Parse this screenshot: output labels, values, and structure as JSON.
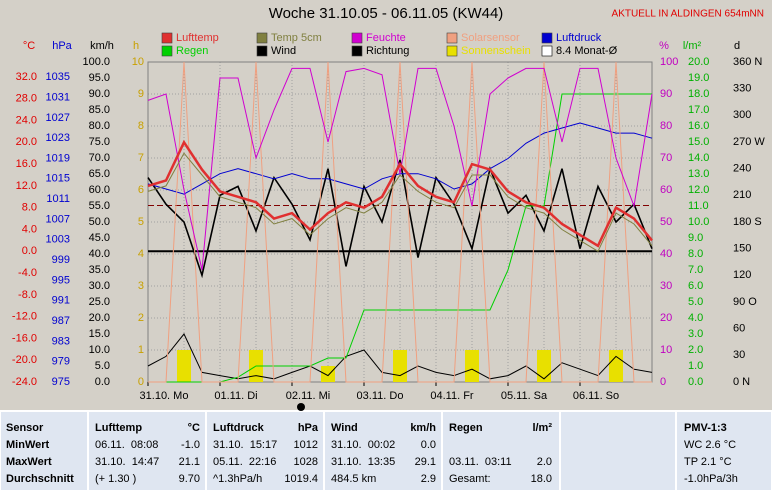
{
  "chart_data": {
    "type": "line",
    "title": "Woche 31.10.05 - 06.11.05 (KW44)",
    "subtitle": "AKTUELL IN ALDINGEN 654mNN",
    "categories": [
      "31.10. Mo",
      null,
      null,
      null,
      "01.11. Di",
      null,
      null,
      null,
      "02.11. Mi",
      null,
      null,
      null,
      "03.11. Do",
      null,
      null,
      null,
      "04.11. Fr",
      null,
      null,
      null,
      "05.11. Sa",
      null,
      null,
      null,
      "06.11. So",
      null,
      null,
      null,
      null
    ],
    "grid": true,
    "axes": [
      {
        "label": "°C",
        "color": "#e00000",
        "side": "left",
        "lim": [
          -24,
          34.75
        ],
        "ticks": [
          {
            "value": 32,
            "label": "32.0"
          },
          {
            "value": 28,
            "label": "28.0"
          },
          {
            "value": 24,
            "label": "24.0"
          },
          {
            "value": 20,
            "label": "20.0"
          },
          {
            "value": 16,
            "label": "16.0"
          },
          {
            "value": 12,
            "label": "12.0"
          },
          {
            "value": 8,
            "label": "8.0"
          },
          {
            "value": 4,
            "label": "4.0"
          },
          {
            "value": 0,
            "label": "0.0"
          },
          {
            "value": -4,
            "label": "-4.0"
          },
          {
            "value": -8,
            "label": "-8.0"
          },
          {
            "value": -12,
            "label": "-12.0"
          },
          {
            "value": -16,
            "label": "-16.0"
          },
          {
            "value": -20,
            "label": "-20.0"
          },
          {
            "value": -24,
            "label": "-24.0"
          }
        ]
      },
      {
        "label": "hPa",
        "color": "#0000d0",
        "side": "left",
        "lim": [
          975,
          1038
        ],
        "ticks": [
          1035,
          1031,
          1027,
          1023,
          1019,
          1015,
          1011,
          1007,
          1003,
          999,
          995,
          991,
          987,
          983,
          979,
          975
        ]
      },
      {
        "label": "km/h",
        "color": "#000000",
        "side": "left",
        "lim": [
          0,
          100
        ],
        "ticks": [
          {
            "value": 100,
            "label": "100.0"
          },
          {
            "value": 95,
            "label": "95.0"
          },
          {
            "value": 90,
            "label": "90.0"
          },
          {
            "value": 85,
            "label": "85.0"
          },
          {
            "value": 80,
            "label": "80.0"
          },
          {
            "value": 75,
            "label": "75.0"
          },
          {
            "value": 70,
            "label": "70.0"
          },
          {
            "value": 65,
            "label": "65.0"
          },
          {
            "value": 60,
            "label": "60.0"
          },
          {
            "value": 55,
            "label": "55.0"
          },
          {
            "value": 50,
            "label": "50.0"
          },
          {
            "value": 45,
            "label": "45.0"
          },
          {
            "value": 40,
            "label": "40.0"
          },
          {
            "value": 35,
            "label": "35.0"
          },
          {
            "value": 30,
            "label": "30.0"
          },
          {
            "value": 25,
            "label": "25.0"
          },
          {
            "value": 20,
            "label": "20.0"
          },
          {
            "value": 15,
            "label": "15.0"
          },
          {
            "value": 10,
            "label": "10.0"
          },
          {
            "value": 5,
            "label": "5.0"
          },
          {
            "value": 0,
            "label": "0.0"
          }
        ]
      },
      {
        "label": "h",
        "color": "#c8a000",
        "side": "left",
        "lim": [
          0,
          10
        ],
        "ticks": [
          10,
          9,
          8,
          7,
          6,
          5,
          4,
          3,
          2,
          1,
          0
        ]
      },
      {
        "label": "%",
        "color": "#c000c0",
        "side": "right",
        "lim": [
          0,
          100
        ],
        "ticks": [
          100,
          90,
          80,
          70,
          60,
          50,
          40,
          30,
          20,
          10,
          0
        ]
      },
      {
        "label": "l/m²",
        "color": "#00b000",
        "side": "right",
        "lim": [
          0,
          20
        ],
        "ticks": [
          {
            "value": 20,
            "label": "20.0"
          },
          {
            "value": 19,
            "label": "19.0"
          },
          {
            "value": 18,
            "label": "18.0"
          },
          {
            "value": 17,
            "label": "17.0"
          },
          {
            "value": 16,
            "label": "16.0"
          },
          {
            "value": 15,
            "label": "15.0"
          },
          {
            "value": 14,
            "label": "14.0"
          },
          {
            "value": 13,
            "label": "13.0"
          },
          {
            "value": 12,
            "label": "12.0"
          },
          {
            "value": 11,
            "label": "11.0"
          },
          {
            "value": 10,
            "label": "10.0"
          },
          {
            "value": 9,
            "label": "9.0"
          },
          {
            "value": 8,
            "label": "8.0"
          },
          {
            "value": 7,
            "label": "7.0"
          },
          {
            "value": 6,
            "label": "6.0"
          },
          {
            "value": 5,
            "label": "5.0"
          },
          {
            "value": 4,
            "label": "4.0"
          },
          {
            "value": 3,
            "label": "3.0"
          },
          {
            "value": 2,
            "label": "2.0"
          },
          {
            "value": 1,
            "label": "1.0"
          },
          {
            "value": 0,
            "label": "0.0"
          }
        ]
      },
      {
        "label": "d",
        "color": "#000000",
        "side": "right",
        "lim": [
          0,
          360
        ],
        "ticks": [
          {
            "value": 360,
            "label": "360 N"
          },
          {
            "value": 330,
            "label": "330"
          },
          {
            "value": 300,
            "label": "300"
          },
          {
            "value": 270,
            "label": "270 W"
          },
          {
            "value": 240,
            "label": "240"
          },
          {
            "value": 210,
            "label": "210"
          },
          {
            "value": 180,
            "label": "180 S"
          },
          {
            "value": 150,
            "label": "150"
          },
          {
            "value": 120,
            "label": "120"
          },
          {
            "value": 90,
            "label": "90 O"
          },
          {
            "value": 60,
            "label": "60"
          },
          {
            "value": 30,
            "label": "30"
          },
          {
            "value": 0,
            "label": "0 N"
          }
        ]
      }
    ],
    "series": [
      {
        "name": "Lufttemp",
        "color": "#e03030",
        "axis": 0,
        "values": [
          12,
          13,
          20,
          15,
          11,
          10,
          9,
          6,
          7,
          4,
          7,
          9,
          8,
          10,
          16,
          12,
          10,
          9,
          16,
          15,
          11,
          9,
          8,
          5,
          3,
          1,
          8,
          6,
          2
        ]
      },
      {
        "name": "Temp 5cm",
        "color": "#808040",
        "axis": 0,
        "values": [
          11,
          12,
          18,
          14,
          10,
          9,
          8,
          5,
          6,
          3,
          6,
          8,
          7,
          9,
          14,
          11,
          9,
          8,
          14,
          14,
          10,
          8,
          7,
          4,
          2,
          0,
          7,
          5,
          1
        ]
      },
      {
        "name": "Feuchte",
        "color": "#d000d0",
        "axis": 4,
        "values": [
          88,
          90,
          60,
          35,
          95,
          95,
          70,
          85,
          98,
          98,
          75,
          97,
          98,
          96,
          65,
          98,
          98,
          80,
          55,
          90,
          95,
          98,
          98,
          75,
          98,
          98,
          70,
          55,
          90
        ]
      },
      {
        "name": "Solarsensor",
        "color": "#f0a080",
        "axis": 4,
        "values": [
          0,
          0,
          100,
          0,
          0,
          0,
          100,
          0,
          0,
          0,
          100,
          0,
          0,
          0,
          100,
          0,
          0,
          0,
          100,
          0,
          0,
          0,
          100,
          0,
          0,
          0,
          100,
          0,
          0
        ]
      },
      {
        "name": "Luftdruck",
        "color": "#0000d0",
        "axis": 1,
        "values": [
          1014,
          1013,
          1012,
          1014,
          1016,
          1017,
          1016,
          1015,
          1016,
          1015,
          1015,
          1014,
          1013,
          1015,
          1016,
          1016,
          1015,
          1013,
          1014,
          1017,
          1019,
          1022,
          1024,
          1025,
          1026,
          1025,
          1024,
          1024,
          1023
        ]
      },
      {
        "name": "Regen",
        "color": "#00d000",
        "axis": 5,
        "values": [
          0,
          0,
          0,
          0,
          0,
          0.3,
          1,
          1,
          1,
          1,
          1.5,
          1.5,
          4.5,
          4.5,
          4.5,
          4.5,
          4.5,
          4.5,
          4.5,
          4.5,
          7,
          11,
          11,
          18,
          18,
          18,
          18,
          18,
          18
        ]
      },
      {
        "name": "Wind",
        "color": "#000000",
        "axis": 2,
        "values": [
          5,
          8,
          15,
          3,
          2,
          1,
          2,
          1,
          3,
          5,
          2,
          8,
          10,
          3,
          2,
          5,
          3,
          2,
          4,
          1,
          2,
          5,
          1,
          6,
          4,
          2,
          8,
          4,
          3
        ]
      },
      {
        "name": "Richtung",
        "color": "#000000",
        "axis": 6,
        "width": 1.6,
        "values": [
          230,
          200,
          180,
          120,
          210,
          220,
          170,
          230,
          200,
          160,
          240,
          130,
          220,
          180,
          250,
          140,
          230,
          200,
          150,
          240,
          190,
          210,
          170,
          240,
          150,
          220,
          180,
          200,
          150
        ]
      },
      {
        "name": "Sonnenschein",
        "color": "#e8e000",
        "axis": 3,
        "type": "bar",
        "values": [
          0,
          0,
          1,
          0,
          0,
          0,
          1,
          0,
          0,
          0,
          0.5,
          0,
          0,
          0,
          1,
          0,
          0,
          0,
          1,
          0,
          0,
          0,
          1,
          0,
          0,
          0,
          1,
          0,
          0
        ]
      }
    ],
    "reference": {
      "name": "8.4 Monat-Ø",
      "value": 8.4,
      "axis": 0,
      "color": "#800000"
    }
  },
  "table": {
    "header": [
      "Sensor",
      "Lufttemp",
      "°C",
      "Luftdruck",
      "hPa",
      "Wind",
      "km/h",
      "Regen",
      "l/m²",
      "PMV-1:3"
    ],
    "rows": [
      [
        "MinWert",
        "06.11.  08:08",
        "-1.0",
        "31.10.  15:17",
        "1012",
        "31.10.  00:02",
        "0.0",
        null,
        null,
        "WC 2.6 °C"
      ],
      [
        "MaxWert",
        "31.10.  14:47",
        "21.1",
        "05.11.  22:16",
        "1028",
        "31.10.  13:35",
        "29.1",
        "03.11.  03:11",
        "2.0",
        "TP 2.1 °C"
      ],
      [
        "Durchschnitt",
        "(+ 1.30 )",
        "9.70",
        "^1.3hPa/h",
        "1019.4",
        "484.5 km",
        "2.9",
        "Gesamt:",
        "18.0",
        "-1.0hPa/3h"
      ]
    ]
  }
}
